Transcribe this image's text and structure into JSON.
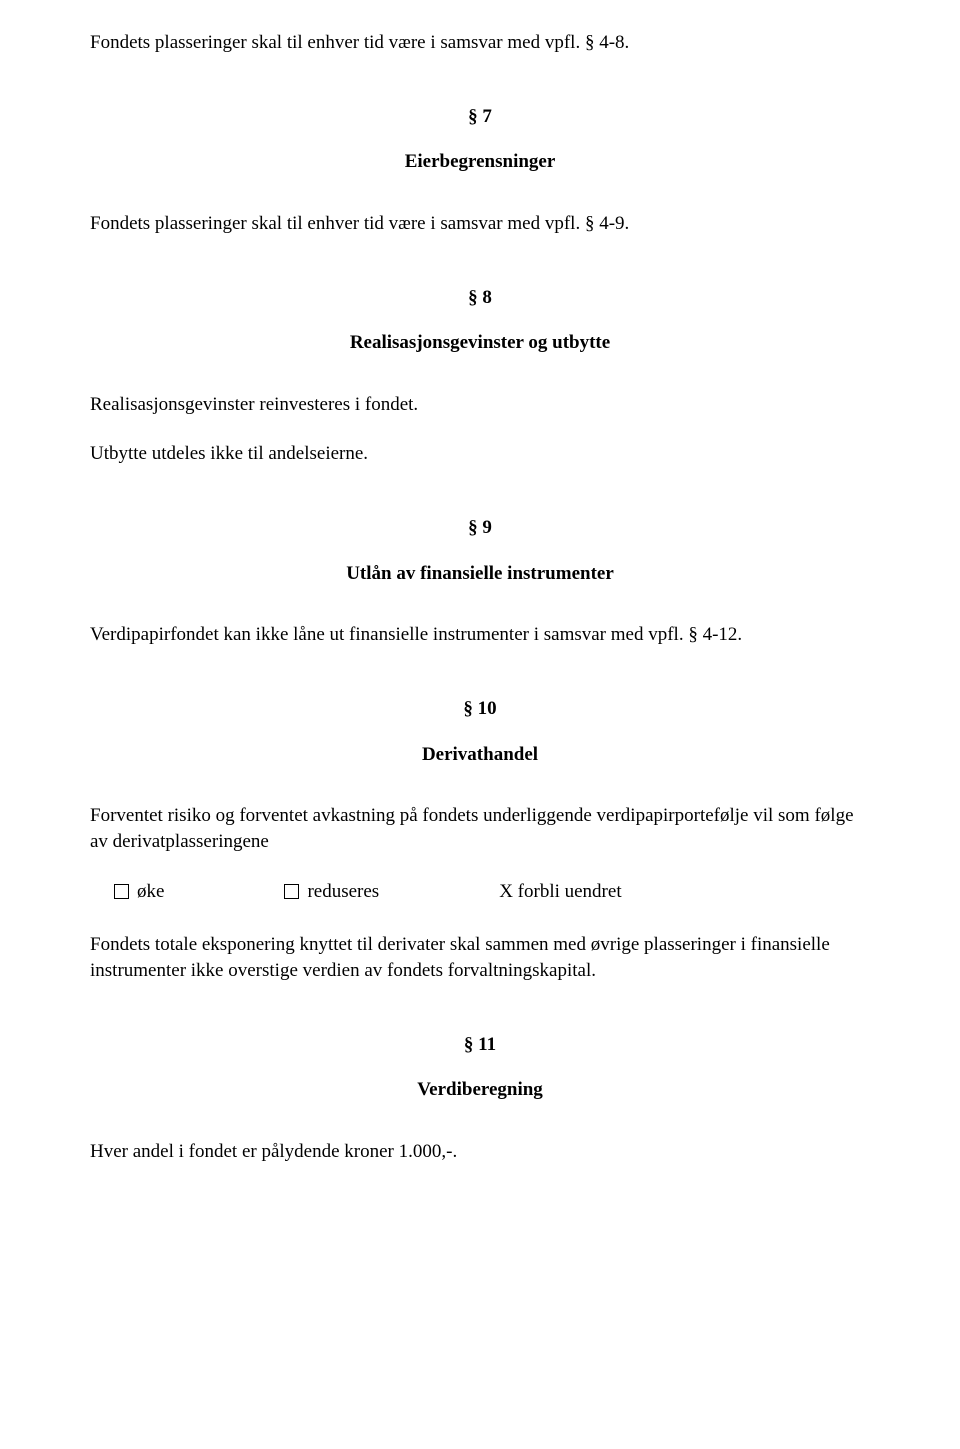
{
  "intro": "Fondets plasseringer skal til enhver tid være i samsvar med vpfl. § 4-8.",
  "s7": {
    "num": "§ 7",
    "title": "Eierbegrensninger",
    "p1": "Fondets plasseringer skal til enhver tid være i samsvar med vpfl. § 4-9."
  },
  "s8": {
    "num": "§ 8",
    "title": "Realisasjonsgevinster og utbytte",
    "p1": "Realisasjonsgevinster reinvesteres i fondet.",
    "p2": "Utbytte utdeles ikke til andelseierne."
  },
  "s9": {
    "num": "§ 9",
    "title": "Utlån av finansielle instrumenter",
    "p1": "Verdipapirfondet kan ikke låne ut finansielle instrumenter i samsvar med vpfl. § 4-12."
  },
  "s10": {
    "num": "§ 10",
    "title": "Derivathandel",
    "p1": "Forventet risiko og forventet avkastning på fondets underliggende verdipapirportefølje vil som følge av derivatplasseringene",
    "opt1": "øke",
    "opt2": "reduseres",
    "opt3": "X forbli uendret",
    "p2": "Fondets totale eksponering knyttet til derivater skal sammen med øvrige plasseringer i finansielle instrumenter ikke overstige verdien av fondets forvaltningskapital."
  },
  "s11": {
    "num": "§ 11",
    "title": "Verdiberegning",
    "p1": "Hver andel i fondet er pålydende kroner 1.000,-."
  }
}
